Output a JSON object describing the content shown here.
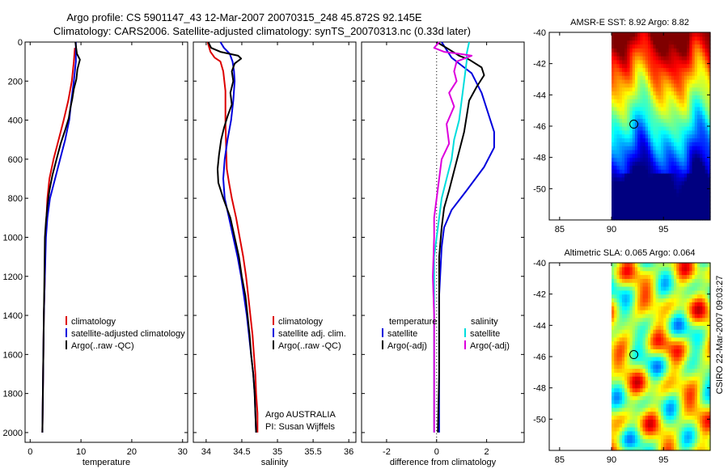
{
  "header": {
    "line1": "Argo profile: CS 5901147_43 12-Mar-2007 20070315_248 45.872S 92.145E",
    "line2": "Climatology: CARS2006. Satellite-adjusted climatology: synTS_20070313.nc (0.33d later)"
  },
  "side_label": "CSIRO 22-Mar-2007 09:03:27",
  "chart_data": [
    {
      "type": "line",
      "id": "temperature",
      "xlabel": "temperature",
      "xlim": [
        -1,
        31
      ],
      "ylim": [
        0,
        2050
      ],
      "y_reversed": true,
      "xticks": [
        0,
        10,
        20,
        30
      ],
      "yticks": [
        0,
        200,
        400,
        600,
        800,
        1000,
        1200,
        1400,
        1600,
        1800,
        2000
      ],
      "legend": [
        "climatology",
        "satellite-adjusted climatology",
        "Argo(..raw -QC)"
      ],
      "series": [
        {
          "name": "climatology",
          "color": "#dd0000",
          "points": [
            [
              8.8,
              30
            ],
            [
              8.6,
              100
            ],
            [
              8.2,
              200
            ],
            [
              7.5,
              300
            ],
            [
              6.6,
              400
            ],
            [
              5.6,
              500
            ],
            [
              4.6,
              600
            ],
            [
              3.8,
              700
            ],
            [
              3.4,
              800
            ],
            [
              3.2,
              900
            ],
            [
              3.0,
              1000
            ],
            [
              2.9,
              1200
            ],
            [
              2.7,
              1400
            ],
            [
              2.6,
              1600
            ],
            [
              2.5,
              1800
            ],
            [
              2.4,
              2000
            ]
          ]
        },
        {
          "name": "satellite-adjusted climatology",
          "color": "#0000dd",
          "points": [
            [
              9.0,
              0
            ],
            [
              9.0,
              100
            ],
            [
              8.6,
              200
            ],
            [
              8.1,
              300
            ],
            [
              7.7,
              400
            ],
            [
              6.9,
              500
            ],
            [
              5.9,
              600
            ],
            [
              4.9,
              700
            ],
            [
              3.9,
              800
            ],
            [
              3.4,
              900
            ],
            [
              3.1,
              1000
            ],
            [
              2.9,
              1200
            ],
            [
              2.7,
              1400
            ],
            [
              2.6,
              1600
            ],
            [
              2.5,
              1800
            ],
            [
              2.4,
              2000
            ]
          ]
        },
        {
          "name": "Argo(..raw -QC)",
          "color": "#000000",
          "points": [
            [
              8.9,
              0
            ],
            [
              9.2,
              60
            ],
            [
              9.8,
              90
            ],
            [
              9.3,
              140
            ],
            [
              9.1,
              190
            ],
            [
              8.6,
              240
            ],
            [
              8.3,
              290
            ],
            [
              7.9,
              340
            ],
            [
              7.6,
              390
            ],
            [
              6.9,
              450
            ],
            [
              6.0,
              520
            ],
            [
              5.2,
              600
            ],
            [
              4.4,
              680
            ],
            [
              3.8,
              760
            ],
            [
              3.4,
              840
            ],
            [
              3.1,
              920
            ],
            [
              2.9,
              1000
            ],
            [
              2.8,
              1200
            ],
            [
              2.7,
              1400
            ],
            [
              2.6,
              1600
            ],
            [
              2.5,
              1800
            ],
            [
              2.4,
              2000
            ]
          ]
        }
      ]
    },
    {
      "type": "line",
      "id": "salinity",
      "xlabel": "salinity",
      "xlim": [
        33.82,
        36.1
      ],
      "ylim": [
        0,
        2050
      ],
      "y_reversed": true,
      "xticks": [
        34,
        34.5,
        35,
        35.5,
        36
      ],
      "xticklabels": [
        "34",
        "34.5",
        "35",
        "35.5",
        "36"
      ],
      "legend": [
        "climatology",
        "satellite adj. clim.",
        "Argo(..raw -QC)"
      ],
      "annotations": [
        "Argo AUSTRALIA",
        "PI: Susan Wijffels"
      ],
      "series": [
        {
          "name": "climatology",
          "color": "#dd0000",
          "points": [
            [
              34.02,
              0
            ],
            [
              34.06,
              50
            ],
            [
              34.12,
              80
            ],
            [
              34.2,
              100
            ],
            [
              34.24,
              150
            ],
            [
              34.27,
              250
            ],
            [
              34.27,
              400
            ],
            [
              34.28,
              550
            ],
            [
              34.29,
              650
            ],
            [
              34.32,
              720
            ],
            [
              34.36,
              800
            ],
            [
              34.42,
              900
            ],
            [
              34.47,
              1000
            ],
            [
              34.52,
              1100
            ],
            [
              34.56,
              1200
            ],
            [
              34.59,
              1300
            ],
            [
              34.62,
              1400
            ],
            [
              34.65,
              1500
            ],
            [
              34.67,
              1600
            ],
            [
              34.69,
              1700
            ],
            [
              34.7,
              1800
            ],
            [
              34.72,
              1900
            ],
            [
              34.72,
              2000
            ]
          ]
        },
        {
          "name": "satellite adj. clim.",
          "color": "#0000dd",
          "points": [
            [
              34.2,
              0
            ],
            [
              34.25,
              30
            ],
            [
              34.33,
              60
            ],
            [
              34.37,
              100
            ],
            [
              34.39,
              150
            ],
            [
              34.4,
              200
            ],
            [
              34.38,
              300
            ],
            [
              34.35,
              400
            ],
            [
              34.3,
              500
            ],
            [
              34.26,
              600
            ],
            [
              34.24,
              700
            ],
            [
              34.26,
              800
            ],
            [
              34.32,
              900
            ],
            [
              34.38,
              1000
            ],
            [
              34.44,
              1100
            ],
            [
              34.49,
              1200
            ],
            [
              34.53,
              1300
            ],
            [
              34.57,
              1400
            ],
            [
              34.6,
              1500
            ],
            [
              34.63,
              1600
            ],
            [
              34.66,
              1700
            ],
            [
              34.68,
              1800
            ],
            [
              34.69,
              1900
            ],
            [
              34.7,
              2000
            ]
          ]
        },
        {
          "name": "Argo(..raw -QC)",
          "color": "#000000",
          "points": [
            [
              34.03,
              0
            ],
            [
              34.07,
              30
            ],
            [
              34.2,
              50
            ],
            [
              34.45,
              70
            ],
            [
              34.49,
              85
            ],
            [
              34.4,
              110
            ],
            [
              34.36,
              150
            ],
            [
              34.38,
              200
            ],
            [
              34.34,
              260
            ],
            [
              34.36,
              320
            ],
            [
              34.3,
              380
            ],
            [
              34.25,
              440
            ],
            [
              34.21,
              500
            ],
            [
              34.18,
              580
            ],
            [
              34.16,
              650
            ],
            [
              34.17,
              720
            ],
            [
              34.24,
              800
            ],
            [
              34.34,
              900
            ],
            [
              34.4,
              1000
            ],
            [
              34.46,
              1100
            ],
            [
              34.5,
              1200
            ],
            [
              34.55,
              1300
            ],
            [
              34.58,
              1400
            ],
            [
              34.61,
              1500
            ],
            [
              34.63,
              1600
            ],
            [
              34.66,
              1700
            ],
            [
              34.68,
              1800
            ],
            [
              34.69,
              1900
            ],
            [
              34.7,
              2000
            ]
          ]
        }
      ]
    },
    {
      "type": "line",
      "id": "difference",
      "xlabel": "difference from climatology",
      "xlim": [
        -3,
        3.5
      ],
      "ylim": [
        0,
        2050
      ],
      "y_reversed": true,
      "xticks": [
        -2,
        0,
        2
      ],
      "zero_line": true,
      "legend_groups": [
        {
          "title": "temperature",
          "items": [
            "satellite",
            "Argo(-adj)"
          ]
        },
        {
          "title": "salinity",
          "items": [
            "satellite",
            "Argo(-adj)"
          ]
        }
      ],
      "series": [
        {
          "name": "temperature satellite",
          "color": "#0000dd",
          "points": [
            [
              0.2,
              0
            ],
            [
              0.4,
              40
            ],
            [
              0.6,
              80
            ],
            [
              1.0,
              120
            ],
            [
              1.4,
              160
            ],
            [
              1.8,
              260
            ],
            [
              2.1,
              380
            ],
            [
              2.3,
              460
            ],
            [
              2.3,
              540
            ],
            [
              1.9,
              640
            ],
            [
              1.2,
              760
            ],
            [
              0.6,
              860
            ],
            [
              0.3,
              950
            ],
            [
              0.2,
              1050
            ],
            [
              0.1,
              1300
            ],
            [
              0.1,
              1600
            ],
            [
              0.1,
              2000
            ]
          ]
        },
        {
          "name": "temperature Argo(-adj)",
          "color": "#000000",
          "points": [
            [
              0.0,
              0
            ],
            [
              0.4,
              30
            ],
            [
              0.9,
              70
            ],
            [
              1.3,
              90
            ],
            [
              1.8,
              130
            ],
            [
              1.9,
              170
            ],
            [
              1.6,
              230
            ],
            [
              1.3,
              300
            ],
            [
              1.2,
              380
            ],
            [
              1.1,
              460
            ],
            [
              0.9,
              560
            ],
            [
              0.7,
              660
            ],
            [
              0.5,
              760
            ],
            [
              0.3,
              850
            ],
            [
              0.2,
              950
            ],
            [
              0.1,
              1100
            ],
            [
              0.1,
              1400
            ],
            [
              0.1,
              1700
            ],
            [
              0.05,
              2000
            ]
          ]
        },
        {
          "name": "salinity satellite",
          "color": "#00dddd",
          "points": [
            [
              1.3,
              0
            ],
            [
              1.2,
              60
            ],
            [
              1.2,
              100
            ],
            [
              1.1,
              200
            ],
            [
              1.0,
              300
            ],
            [
              0.9,
              400
            ],
            [
              0.7,
              500
            ],
            [
              0.6,
              600
            ],
            [
              0.4,
              700
            ],
            [
              0.2,
              800
            ],
            [
              0.1,
              900
            ],
            [
              0.0,
              1000
            ],
            [
              -0.1,
              1100
            ],
            [
              -0.1,
              1300
            ],
            [
              -0.1,
              1600
            ],
            [
              -0.1,
              1800
            ],
            [
              -0.1,
              2000
            ]
          ]
        },
        {
          "name": "salinity Argo(-adj)",
          "color": "#dd00dd",
          "points": [
            [
              0.1,
              0
            ],
            [
              -0.1,
              30
            ],
            [
              0.3,
              50
            ],
            [
              0.9,
              60
            ],
            [
              1.4,
              70
            ],
            [
              0.8,
              100
            ],
            [
              0.7,
              150
            ],
            [
              0.8,
              200
            ],
            [
              0.5,
              260
            ],
            [
              0.7,
              330
            ],
            [
              0.4,
              420
            ],
            [
              0.5,
              520
            ],
            [
              0.2,
              600
            ],
            [
              0.1,
              700
            ],
            [
              0.0,
              800
            ],
            [
              -0.1,
              900
            ],
            [
              -0.1,
              1000
            ],
            [
              -0.15,
              1200
            ],
            [
              -0.1,
              1400
            ],
            [
              -0.1,
              1600
            ],
            [
              -0.1,
              1800
            ],
            [
              -0.1,
              2000
            ]
          ]
        }
      ]
    },
    {
      "type": "heatmap",
      "id": "sst_map",
      "title": "AMSR-E SST: 8.92 Argo: 8.82",
      "xlim": [
        84,
        99.5
      ],
      "ylim": [
        -52,
        -40
      ],
      "xticks": [
        85,
        90,
        95
      ],
      "yticks": [
        -40,
        -42,
        -44,
        -46,
        -48,
        -50
      ],
      "data_x_range": [
        90,
        99.5
      ],
      "marker": [
        92.145,
        -45.872
      ],
      "colormap": "jet",
      "value_field": "sst"
    },
    {
      "type": "heatmap",
      "id": "sla_map",
      "title": "Altimetric SLA: 0.065 Argo: 0.064",
      "xlim": [
        84,
        99.5
      ],
      "ylim": [
        -52,
        -40
      ],
      "xticks": [
        85,
        90,
        95
      ],
      "yticks": [
        -40,
        -42,
        -44,
        -46,
        -48,
        -50
      ],
      "data_x_range": [
        90,
        99.5
      ],
      "marker": [
        92.145,
        -45.872
      ],
      "colormap": "jet",
      "value_field": "sla"
    }
  ]
}
